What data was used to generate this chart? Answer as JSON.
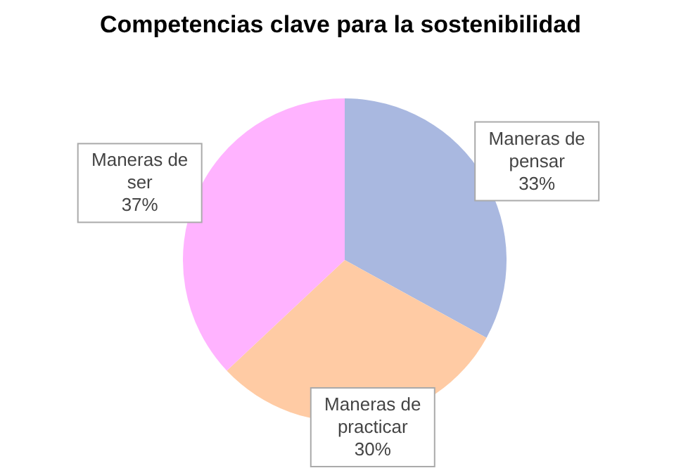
{
  "chart_data": {
    "type": "pie",
    "title": "Competencias clave para la sostenibilidad",
    "categories": [
      "Maneras de pensar",
      "Maneras de practicar",
      "Maneras de ser"
    ],
    "values": [
      33,
      30,
      37
    ],
    "value_labels": [
      "33%",
      "30%",
      "37%"
    ],
    "colors": [
      "#a9b8e0",
      "#ffcba4",
      "#ffb3ff"
    ],
    "legend": false
  }
}
